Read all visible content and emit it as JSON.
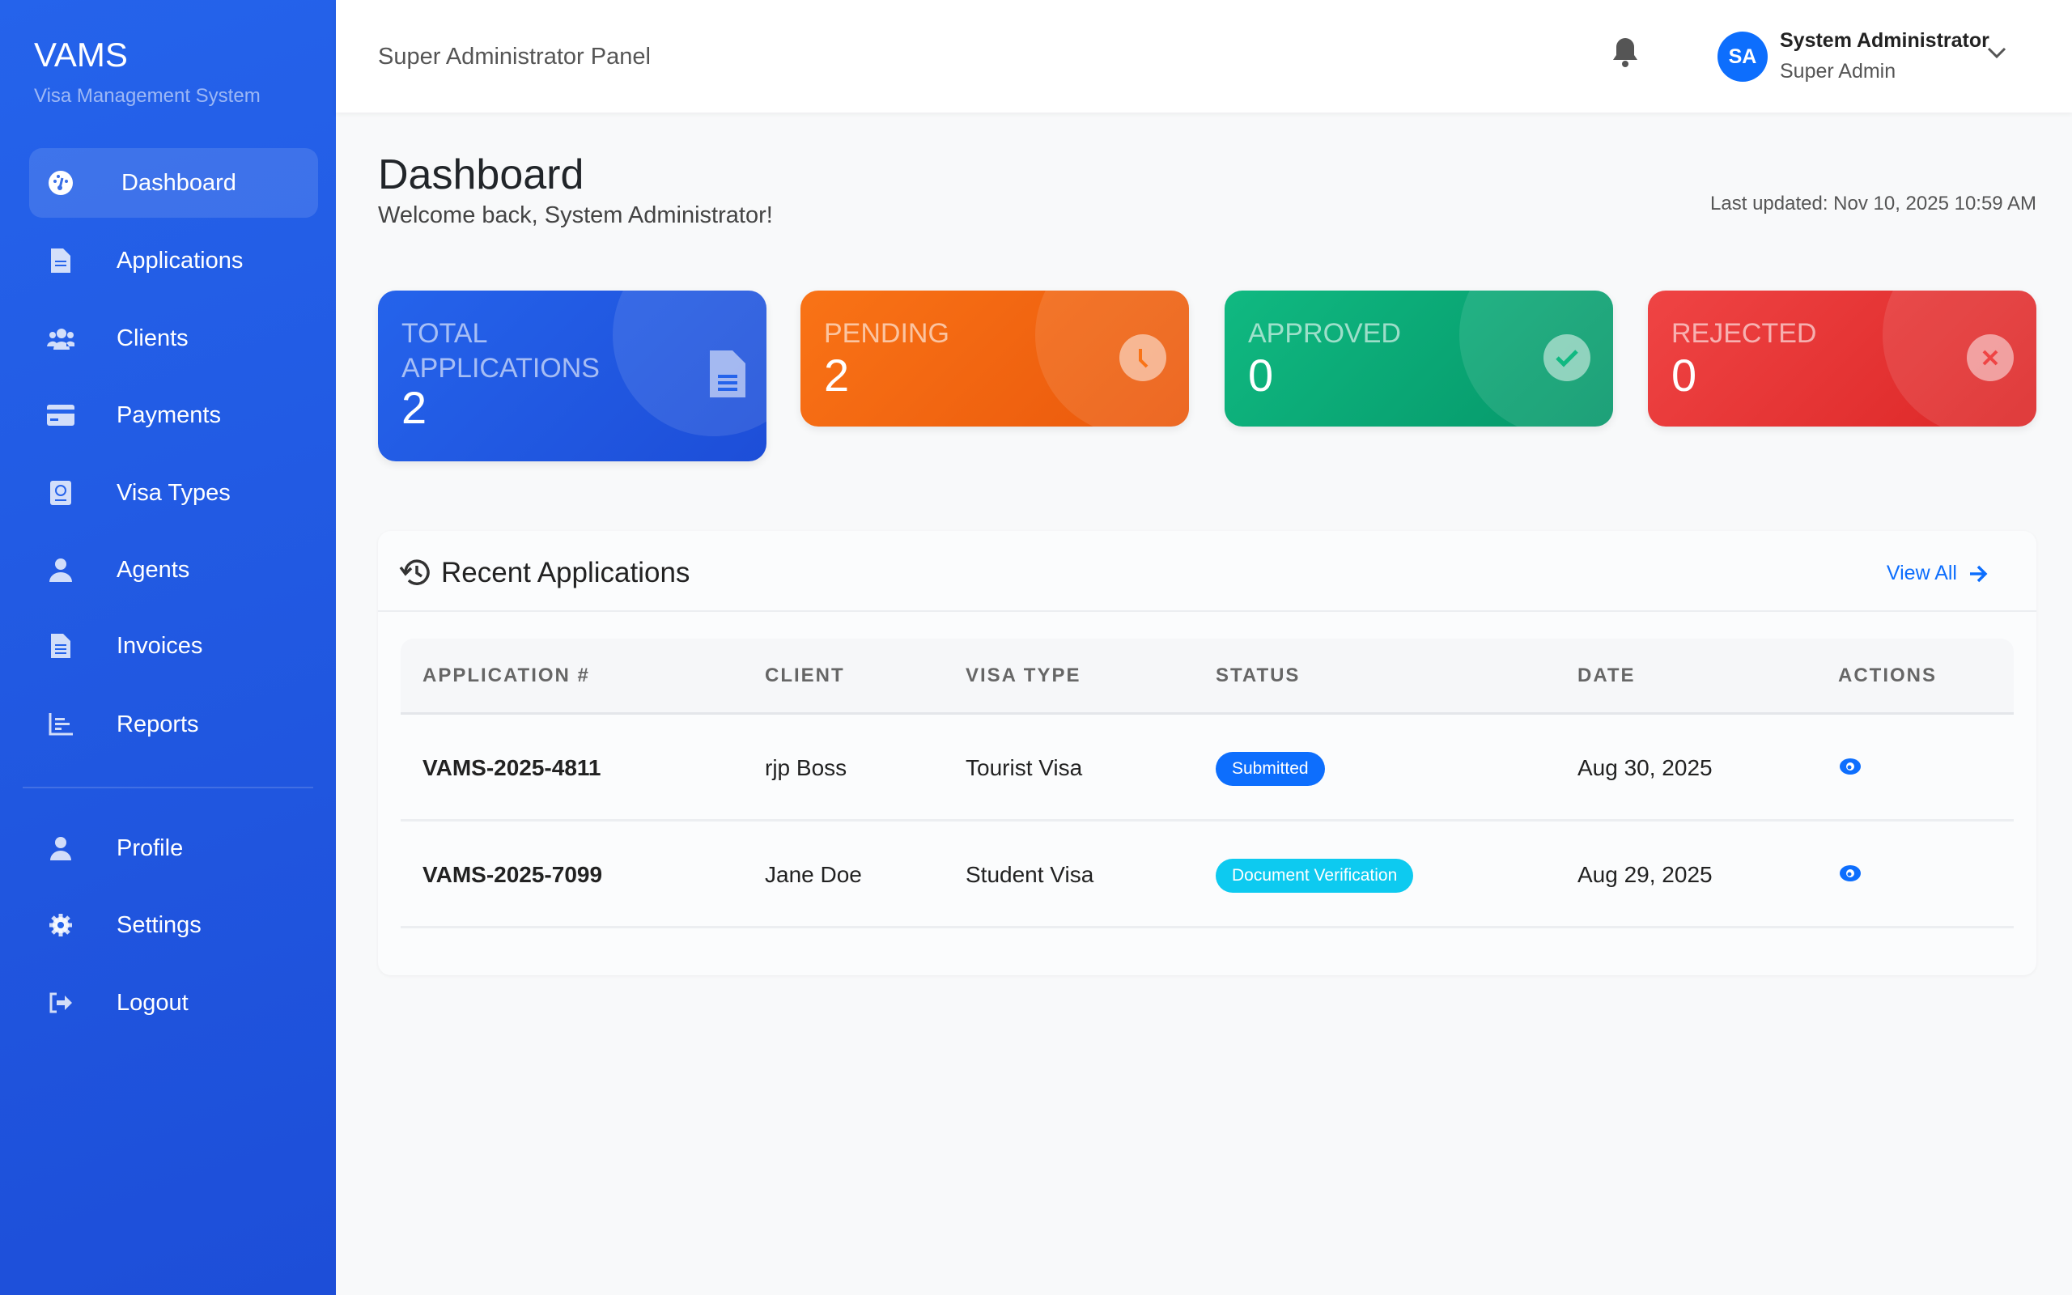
{
  "sidebar": {
    "brand": "VAMS",
    "subtitle": "Visa Management System",
    "items": [
      {
        "label": "Dashboard",
        "icon": "dashboard-icon"
      },
      {
        "label": "Applications",
        "icon": "file-icon"
      },
      {
        "label": "Clients",
        "icon": "users-icon"
      },
      {
        "label": "Payments",
        "icon": "credit-card-icon"
      },
      {
        "label": "Visa Types",
        "icon": "passport-icon"
      },
      {
        "label": "Agents",
        "icon": "agent-icon"
      },
      {
        "label": "Invoices",
        "icon": "invoice-icon"
      },
      {
        "label": "Reports",
        "icon": "chart-icon"
      }
    ],
    "bottom_items": [
      {
        "label": "Profile",
        "icon": "user-icon"
      },
      {
        "label": "Settings",
        "icon": "gear-icon"
      },
      {
        "label": "Logout",
        "icon": "logout-icon"
      }
    ],
    "active": "Dashboard"
  },
  "header": {
    "panel_title": "Super Administrator Panel",
    "user": {
      "initials": "SA",
      "name": "System Administrator",
      "role": "Super Admin"
    }
  },
  "page": {
    "title": "Dashboard",
    "welcome": "Welcome back, System Administrator!",
    "last_updated": "Last updated: Nov 10, 2025 10:59 AM"
  },
  "stats": [
    {
      "label": "TOTAL APPLICATIONS",
      "value": "2",
      "color": "#2563eb",
      "icon": "file-icon"
    },
    {
      "label": "PENDING",
      "value": "2",
      "color": "#f97316",
      "icon": "clock-icon"
    },
    {
      "label": "APPROVED",
      "value": "0",
      "color": "#10b981",
      "icon": "check-icon"
    },
    {
      "label": "REJECTED",
      "value": "0",
      "color": "#ef4444",
      "icon": "x-icon"
    }
  ],
  "recent": {
    "title": "Recent Applications",
    "view_all": "View All",
    "columns": [
      "APPLICATION #",
      "CLIENT",
      "VISA TYPE",
      "STATUS",
      "DATE",
      "ACTIONS"
    ],
    "rows": [
      {
        "app": "VAMS-2025-4811",
        "client": "rjp Boss",
        "visa": "Tourist Visa",
        "status": "Submitted",
        "status_color": "#0d6efd",
        "date": "Aug 30, 2025"
      },
      {
        "app": "VAMS-2025-7099",
        "client": "Jane Doe",
        "visa": "Student Visa",
        "status": "Document Verification",
        "status_color": "#0dcaf0",
        "date": "Aug 29, 2025"
      }
    ]
  }
}
